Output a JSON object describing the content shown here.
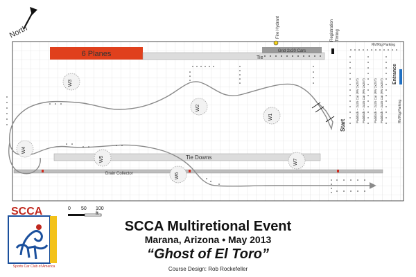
{
  "north_label": "North",
  "banners": {
    "six_planes": "6 Planes",
    "tie": "Tie",
    "tie_downs": "Tie Downs",
    "drain_collector": "Drain Collector",
    "grid": "Grid 2x20 Cars"
  },
  "facilities": {
    "fire_hydrant": "Fire Hydrant",
    "registration": "Registration",
    "timing": "Timing",
    "rv_rig_parking_top": "RV/Rig Parking",
    "rv_rig_parking_side": "RV/Rig Parking",
    "entrance": "Entrance",
    "paddock_labels": [
      "Paddock – 2x25 Car (RV 2x25?)",
      "Paddock – 2x25 Car (RV 2x25?)",
      "Paddock – 2x25 Car (RV 2x25?)",
      "Paddock – 2x25 Car (RV 2x25?)"
    ]
  },
  "course": {
    "start": "Start",
    "workers": [
      "W1",
      "W2",
      "W3",
      "W4",
      "W5",
      "W6",
      "W7"
    ]
  },
  "scale": {
    "ticks": [
      "0",
      "50",
      "100 ft"
    ]
  },
  "title": {
    "event": "SCCA Multiretional Event",
    "location": "Marana, Arizona • May 2013",
    "name": "“Ghost of El Toro”",
    "credit": "Course Design:  Rob Rockefeller"
  },
  "logo": {
    "text": "SCCA",
    "caption": "Sports Car Club of America"
  },
  "colors": {
    "planes_fill": "#e0401c",
    "grid_fill": "#9a9a9a",
    "runway_fill": "#dcdcdc",
    "course_line": "#8a8a8a",
    "accent_blue": "#1f6fc2",
    "logo_blue": "#1a4f9c",
    "logo_red": "#c0281e",
    "logo_yellow": "#f3c21a",
    "hydrant_yellow": "#f4d21b"
  }
}
